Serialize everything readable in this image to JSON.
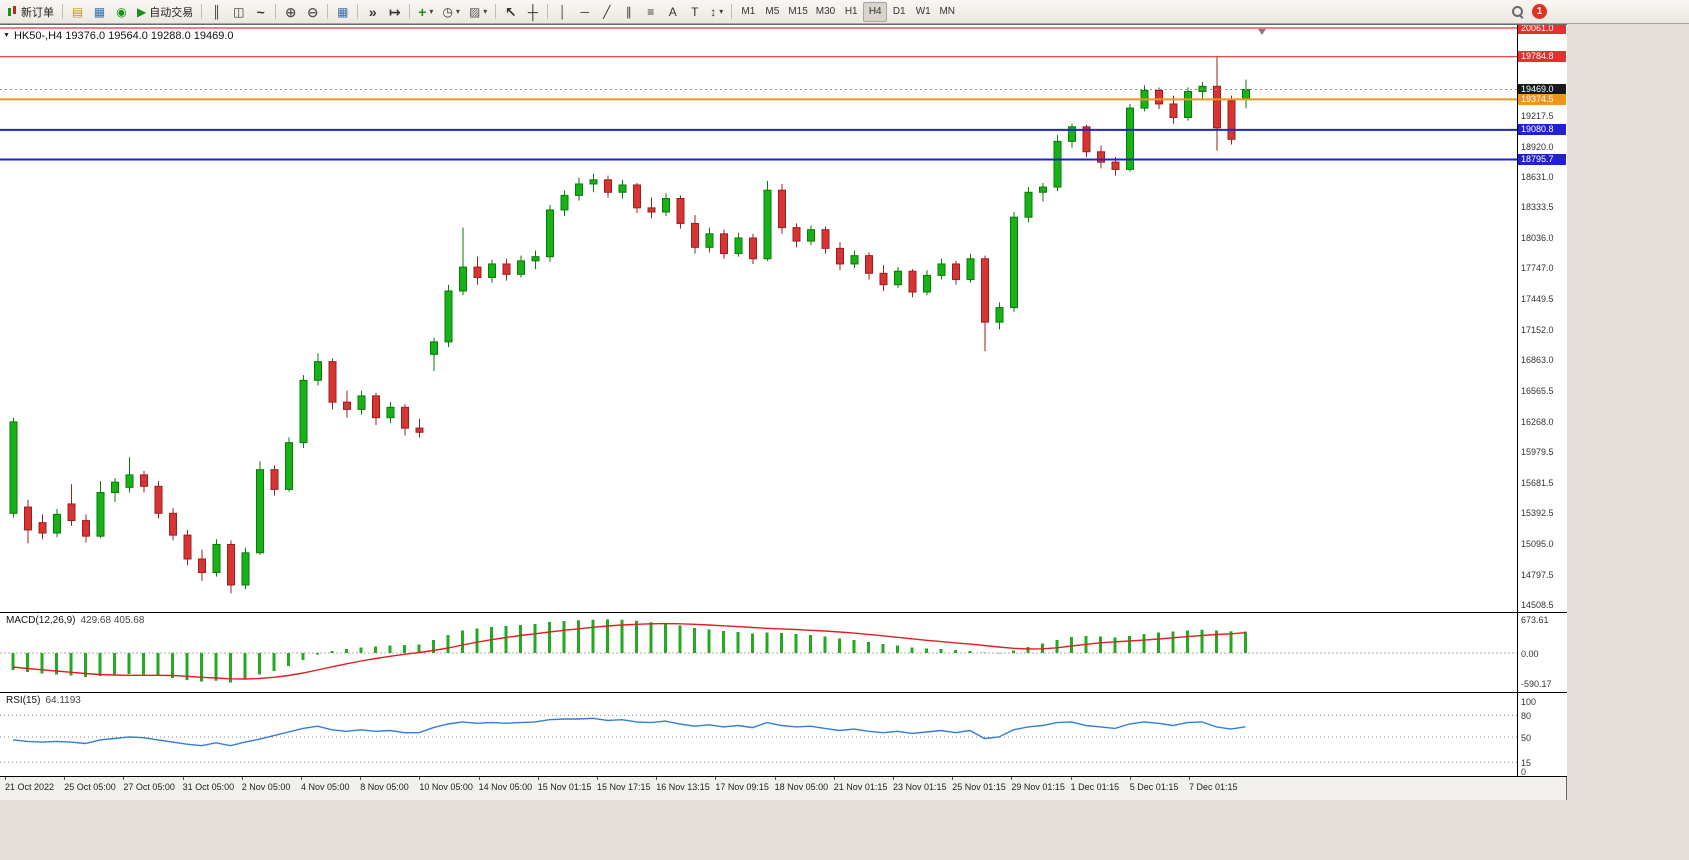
{
  "toolbar": {
    "new_order": "新订单",
    "autotrading": "自动交易",
    "timeframes": [
      "M1",
      "M5",
      "M15",
      "M30",
      "H1",
      "H4",
      "D1",
      "W1",
      "MN"
    ],
    "active_timeframe": "H4",
    "badge_count": "1"
  },
  "icons": {
    "symbol_dropdown": "▼",
    "market_watch": "▤",
    "data_window": "▦",
    "terminal": "◉",
    "autotrading_play": "▶",
    "chart_bars": "║",
    "chart_candles": "◫",
    "chart_line": "~",
    "zoom_in": "⊕",
    "zoom_out": "⊖",
    "tile_windows": "▦",
    "auto_scroll": "»",
    "chart_shift": "↦",
    "indicators_plus": "+",
    "periods_clock": "◷",
    "templates": "▨",
    "dropdown_caret": "▾",
    "cursor": "↖",
    "crosshair": "┼",
    "vertical_line": "│",
    "horizontal_line": "─",
    "trend_line": "╱",
    "channel": "∥",
    "fibonacci": "≡",
    "text": "A",
    "text_label": "T",
    "arrows": "↕"
  },
  "chart_data": {
    "type": "candlestick",
    "title": "HK50-,H4",
    "symbol": "HK50-",
    "period": "H4",
    "ohlc_text": "19376.0 19564.0 19288.0 19469.0",
    "last_bar": {
      "open": 19376.0,
      "high": 19564.0,
      "low": 19288.0,
      "close": 19469.0
    },
    "current_price": 19469.0,
    "ylim": [
      14440,
      20090
    ],
    "x_start": 13,
    "x_step": 14.5,
    "candle_width": 7,
    "up_color": "#16b216",
    "down_color": "#d93434",
    "up_stroke": "#0a7a0a",
    "down_stroke": "#992020",
    "levels": [
      {
        "price": 20061.0,
        "label": "20061.0",
        "color": "#e53030",
        "width": 1.2
      },
      {
        "price": 19784.8,
        "label": "19784.8",
        "color": "#e53030",
        "width": 1.2
      },
      {
        "price": 19469.0,
        "label": "19469.0",
        "color": "#1a1a1a",
        "width": 0,
        "dashed": true
      },
      {
        "price": 19374.5,
        "label": "19374.5",
        "color": "#f0941e",
        "width": 2
      },
      {
        "price": 19080.8,
        "label": "19080.8",
        "color": "#2222cc",
        "width": 2
      },
      {
        "price": 18795.7,
        "label": "18795.7",
        "color": "#2222cc",
        "width": 2
      }
    ],
    "price_axis_ticks": [
      19217.5,
      18920.0,
      18631.0,
      18333.5,
      18036.0,
      17747.0,
      17449.5,
      17152.0,
      16863.0,
      16565.5,
      16268.0,
      15979.5,
      15681.5,
      15392.5,
      15095.0,
      14797.5,
      14508.5
    ],
    "x_labels": [
      "21 Oct 2022",
      "25 Oct 05:00",
      "27 Oct 05:00",
      "31 Oct 05:00",
      "2 Nov 05:00",
      "4 Nov 05:00",
      "8 Nov 05:00",
      "10 Nov 05:00",
      "14 Nov 05:00",
      "15 Nov 01:15",
      "15 Nov 17:15",
      "16 Nov 13:15",
      "17 Nov 09:15",
      "18 Nov 05:00",
      "21 Nov 01:15",
      "23 Nov 01:15",
      "25 Nov 01:15",
      "29 Nov 01:15",
      "1 Dec 01:15",
      "5 Dec 01:15",
      "7 Dec 01:15"
    ],
    "candles": [
      [
        15390,
        16310,
        15350,
        16270
      ],
      [
        15450,
        15520,
        15100,
        15230
      ],
      [
        15300,
        15380,
        15140,
        15200
      ],
      [
        15200,
        15430,
        15160,
        15380
      ],
      [
        15480,
        15670,
        15270,
        15320
      ],
      [
        15320,
        15380,
        15110,
        15170
      ],
      [
        15170,
        15700,
        15150,
        15590
      ],
      [
        15590,
        15730,
        15500,
        15690
      ],
      [
        15640,
        15930,
        15590,
        15760
      ],
      [
        15760,
        15800,
        15590,
        15650
      ],
      [
        15650,
        15700,
        15340,
        15390
      ],
      [
        15390,
        15440,
        15130,
        15180
      ],
      [
        15180,
        15230,
        14890,
        14950
      ],
      [
        14950,
        15040,
        14740,
        14820
      ],
      [
        14820,
        15140,
        14780,
        15090
      ],
      [
        15090,
        15130,
        14620,
        14700
      ],
      [
        14700,
        15060,
        14660,
        15010
      ],
      [
        15010,
        15890,
        14990,
        15810
      ],
      [
        15810,
        15850,
        15560,
        15620
      ],
      [
        15620,
        16120,
        15600,
        16070
      ],
      [
        16070,
        16720,
        16020,
        16670
      ],
      [
        16670,
        16930,
        16620,
        16850
      ],
      [
        16850,
        16880,
        16390,
        16460
      ],
      [
        16460,
        16570,
        16310,
        16390
      ],
      [
        16390,
        16570,
        16340,
        16520
      ],
      [
        16520,
        16550,
        16240,
        16310
      ],
      [
        16310,
        16460,
        16260,
        16410
      ],
      [
        16410,
        16440,
        16140,
        16210
      ],
      [
        16210,
        16300,
        16120,
        16170
      ],
      [
        16920,
        17080,
        16760,
        17040
      ],
      [
        17040,
        17590,
        16990,
        17530
      ],
      [
        17530,
        18140,
        17490,
        17760
      ],
      [
        17760,
        17860,
        17590,
        17660
      ],
      [
        17660,
        17830,
        17610,
        17790
      ],
      [
        17790,
        17840,
        17630,
        17690
      ],
      [
        17690,
        17870,
        17660,
        17820
      ],
      [
        17820,
        17920,
        17740,
        17860
      ],
      [
        17860,
        18360,
        17810,
        18310
      ],
      [
        18310,
        18500,
        18250,
        18450
      ],
      [
        18450,
        18620,
        18400,
        18560
      ],
      [
        18560,
        18660,
        18480,
        18600
      ],
      [
        18600,
        18640,
        18430,
        18480
      ],
      [
        18480,
        18600,
        18420,
        18550
      ],
      [
        18550,
        18570,
        18280,
        18330
      ],
      [
        18330,
        18430,
        18230,
        18290
      ],
      [
        18290,
        18470,
        18250,
        18420
      ],
      [
        18420,
        18450,
        18130,
        18180
      ],
      [
        18180,
        18260,
        17890,
        17950
      ],
      [
        17950,
        18140,
        17900,
        18080
      ],
      [
        18080,
        18120,
        17840,
        17890
      ],
      [
        17890,
        18090,
        17860,
        18040
      ],
      [
        18040,
        18080,
        17790,
        17840
      ],
      [
        17840,
        18590,
        17820,
        18500
      ],
      [
        18500,
        18560,
        18080,
        18140
      ],
      [
        18140,
        18180,
        17950,
        18010
      ],
      [
        18010,
        18160,
        17970,
        18120
      ],
      [
        18120,
        18150,
        17890,
        17940
      ],
      [
        17940,
        18000,
        17730,
        17790
      ],
      [
        17790,
        17920,
        17750,
        17870
      ],
      [
        17870,
        17900,
        17640,
        17700
      ],
      [
        17700,
        17780,
        17530,
        17590
      ],
      [
        17590,
        17760,
        17560,
        17720
      ],
      [
        17720,
        17740,
        17470,
        17520
      ],
      [
        17520,
        17730,
        17490,
        17680
      ],
      [
        17680,
        17840,
        17640,
        17790
      ],
      [
        17790,
        17820,
        17590,
        17640
      ],
      [
        17640,
        17890,
        17610,
        17840
      ],
      [
        17840,
        17870,
        16950,
        17230
      ],
      [
        17230,
        17420,
        17160,
        17370
      ],
      [
        17370,
        18290,
        17330,
        18240
      ],
      [
        18240,
        18530,
        18190,
        18480
      ],
      [
        18480,
        18570,
        18390,
        18530
      ],
      [
        18530,
        19030,
        18490,
        18970
      ],
      [
        18970,
        19140,
        18910,
        19110
      ],
      [
        19110,
        19130,
        18820,
        18870
      ],
      [
        18870,
        18930,
        18710,
        18770
      ],
      [
        18770,
        18820,
        18640,
        18700
      ],
      [
        18700,
        19330,
        18680,
        19290
      ],
      [
        19290,
        19510,
        19260,
        19460
      ],
      [
        19460,
        19490,
        19280,
        19330
      ],
      [
        19330,
        19410,
        19140,
        19200
      ],
      [
        19200,
        19490,
        19170,
        19450
      ],
      [
        19450,
        19540,
        19380,
        19500
      ],
      [
        19500,
        19790,
        18880,
        19100
      ],
      [
        19360,
        19410,
        18940,
        18990
      ],
      [
        19376,
        19564,
        19288,
        19469
      ]
    ],
    "macd": {
      "name": "MACD(12,26,9)",
      "values_text": "429.68 405.68",
      "ylim": [
        -780,
        800
      ],
      "hist_color": "#22aa22",
      "signal_color": "#e02020",
      "ticks": [
        {
          "v": 673.61,
          "label": "673.61"
        },
        {
          "v": 0,
          "label": "0.00"
        },
        {
          "v": -590.17,
          "label": "-590.17"
        }
      ],
      "hist": [
        -340,
        -380,
        -410,
        -430,
        -450,
        -480,
        -460,
        -440,
        -420,
        -430,
        -460,
        -500,
        -540,
        -570,
        -555,
        -590.17,
        -520,
        -430,
        -360,
        -260,
        -140,
        -30,
        40,
        80,
        110,
        130,
        150,
        160,
        170,
        260,
        360,
        450,
        490,
        520,
        540,
        560,
        580,
        620,
        640,
        655,
        665,
        673.61,
        665,
        645,
        615,
        590,
        550,
        500,
        470,
        440,
        420,
        390,
        410,
        400,
        380,
        360,
        330,
        290,
        260,
        220,
        180,
        150,
        110,
        90,
        80,
        60,
        40,
        10,
        -10,
        50,
        120,
        190,
        260,
        320,
        340,
        330,
        310,
        340,
        380,
        410,
        430,
        450,
        465,
        450,
        435,
        429.68
      ],
      "signal": [
        -280,
        -310,
        -335,
        -360,
        -385,
        -410,
        -430,
        -440,
        -445,
        -445,
        -445,
        -450,
        -465,
        -485,
        -500,
        -515,
        -520,
        -510,
        -485,
        -450,
        -400,
        -340,
        -275,
        -215,
        -160,
        -110,
        -65,
        -25,
        10,
        50,
        100,
        160,
        215,
        265,
        310,
        350,
        385,
        420,
        455,
        485,
        515,
        540,
        560,
        575,
        585,
        588,
        585,
        575,
        560,
        545,
        528,
        510,
        495,
        482,
        470,
        455,
        440,
        420,
        398,
        372,
        345,
        315,
        285,
        255,
        228,
        202,
        178,
        150,
        120,
        95,
        80,
        85,
        105,
        140,
        175,
        205,
        225,
        240,
        258,
        280,
        305,
        328,
        350,
        370,
        385,
        405.68
      ]
    },
    "rsi": {
      "name": "RSI(15)",
      "value_text": "64.1193",
      "ylim": [
        -4,
        111
      ],
      "line_color": "#2f7fd4",
      "levels": [
        80,
        50,
        15
      ],
      "ticks": [
        {
          "v": 100,
          "label": "100"
        },
        {
          "v": 80,
          "label": "80"
        },
        {
          "v": 50,
          "label": "50"
        },
        {
          "v": 15,
          "label": "15"
        },
        {
          "v": 0,
          "label": "0"
        }
      ],
      "values": [
        46,
        44,
        43,
        44,
        43,
        41,
        46,
        48,
        50,
        49,
        46,
        43,
        40,
        38,
        42,
        38,
        43,
        47,
        52,
        57,
        62,
        65,
        60,
        58,
        60,
        58,
        59,
        56,
        56,
        63,
        68,
        71,
        69,
        70,
        69,
        70,
        71,
        74,
        75,
        75,
        76,
        73,
        74,
        71,
        70,
        72,
        68,
        65,
        67,
        64,
        66,
        63,
        70,
        66,
        64,
        65,
        62,
        59,
        61,
        58,
        56,
        58,
        55,
        57,
        59,
        56,
        59,
        48,
        50,
        60,
        64,
        66,
        70,
        71,
        66,
        64,
        62,
        68,
        71,
        69,
        66,
        70,
        71,
        64,
        61,
        64.12
      ]
    }
  }
}
